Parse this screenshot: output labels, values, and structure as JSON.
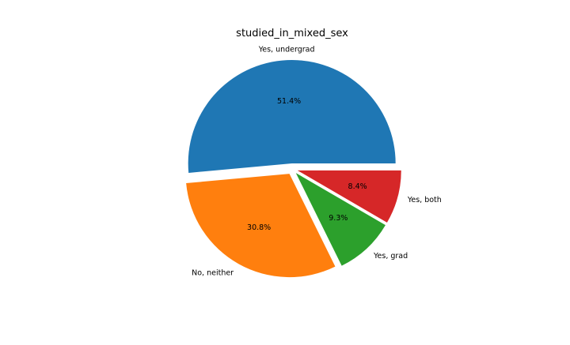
{
  "chart_data": {
    "type": "pie",
    "title": "studied_in_mixed_sex",
    "slices": [
      {
        "label": "Yes, undergrad",
        "value": 51.4,
        "pct_label": "51.4%",
        "color": "#1f77b4"
      },
      {
        "label": "No, neither",
        "value": 30.8,
        "pct_label": "30.8%",
        "color": "#ff7f0e"
      },
      {
        "label": "Yes, grad",
        "value": 9.3,
        "pct_label": "9.3%",
        "color": "#2ca02c"
      },
      {
        "label": "Yes, both",
        "value": 8.4,
        "pct_label": "8.4%",
        "color": "#d62728"
      }
    ],
    "start_angle_deg": 0,
    "direction": "counterclockwise",
    "exploded": true,
    "legend": "none"
  }
}
